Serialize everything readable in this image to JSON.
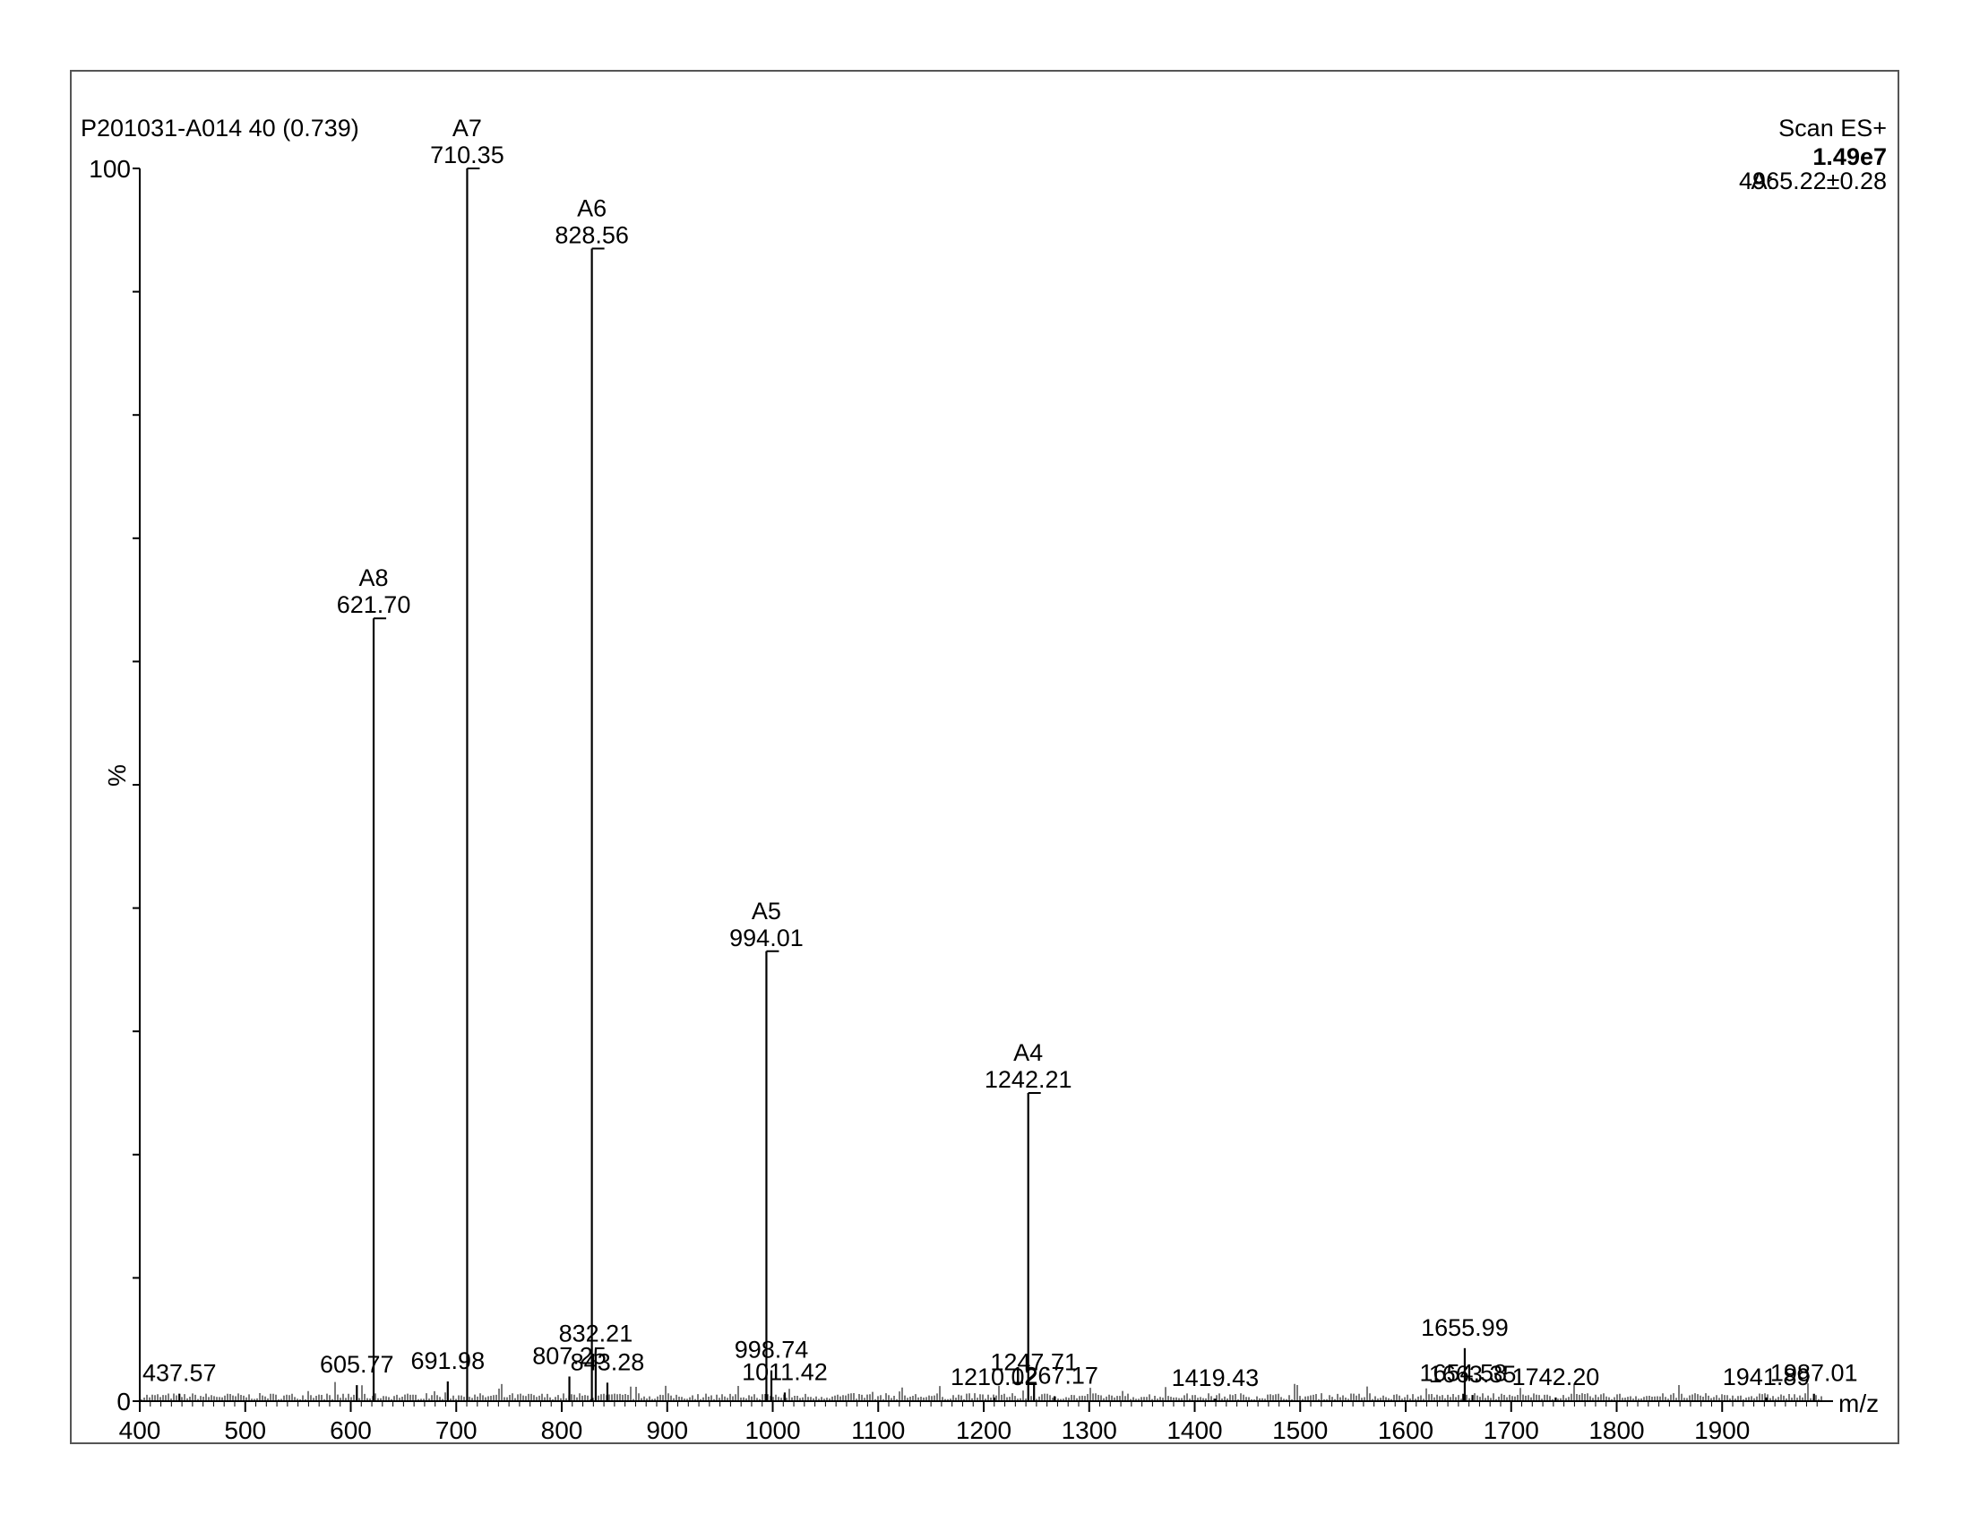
{
  "header": {
    "sample": "P201031-A014 40 (0.739)",
    "scan_mode": "Scan ES+",
    "base_intensity": "1.49e7",
    "mass_label": "A:",
    "mass_value": "4965.22±0.28"
  },
  "chart_data": {
    "type": "bar",
    "xlabel": "m/z",
    "ylabel": "%",
    "xlim": [
      400,
      2000
    ],
    "ylim": [
      0,
      100
    ],
    "x_ticks": [
      400,
      500,
      600,
      700,
      800,
      900,
      1000,
      1100,
      1200,
      1300,
      1400,
      1500,
      1600,
      1700,
      1800,
      1900
    ],
    "y_ticks": [
      0,
      100
    ],
    "grid": false,
    "peaks": [
      {
        "mz": 437.57,
        "intensity": 0.6,
        "label": "437.57"
      },
      {
        "mz": 605.77,
        "intensity": 1.3,
        "label": "605.77"
      },
      {
        "mz": 621.7,
        "intensity": 63.5,
        "ion": "A8",
        "label": "621.70"
      },
      {
        "mz": 691.98,
        "intensity": 1.6,
        "label": "691.98"
      },
      {
        "mz": 710.35,
        "intensity": 100,
        "ion": "A7",
        "label": "710.35"
      },
      {
        "mz": 807.25,
        "intensity": 2.0,
        "label": "807.25"
      },
      {
        "mz": 828.56,
        "intensity": 93.5,
        "ion": "A6",
        "label": "828.56"
      },
      {
        "mz": 832.21,
        "intensity": 3.8,
        "label": "832.21"
      },
      {
        "mz": 843.28,
        "intensity": 1.5,
        "label": "843.28"
      },
      {
        "mz": 994.01,
        "intensity": 36.5,
        "ion": "A5",
        "label": "994.01"
      },
      {
        "mz": 998.74,
        "intensity": 2.5,
        "label": "998.74"
      },
      {
        "mz": 1011.42,
        "intensity": 0.7,
        "label": "1011.42"
      },
      {
        "mz": 1210.02,
        "intensity": 0.3,
        "label": "1210.02"
      },
      {
        "mz": 1242.21,
        "intensity": 25.0,
        "ion": "A4",
        "label": "1242.21"
      },
      {
        "mz": 1247.71,
        "intensity": 1.5,
        "label": "1247.71"
      },
      {
        "mz": 1267.17,
        "intensity": 0.4,
        "label": "1267.17"
      },
      {
        "mz": 1419.43,
        "intensity": 0.2,
        "label": "1419.43"
      },
      {
        "mz": 1654.58,
        "intensity": 0.6,
        "label": "1654.58"
      },
      {
        "mz": 1655.99,
        "intensity": 4.3,
        "label": "1655.99"
      },
      {
        "mz": 1663.35,
        "intensity": 0.5,
        "label": "1663.35"
      },
      {
        "mz": 1742.2,
        "intensity": 0.3,
        "label": "1742.20"
      },
      {
        "mz": 1941.89,
        "intensity": 0.3,
        "label": "1941.89"
      },
      {
        "mz": 1987.01,
        "intensity": 0.6,
        "label": "1987.01"
      }
    ]
  }
}
